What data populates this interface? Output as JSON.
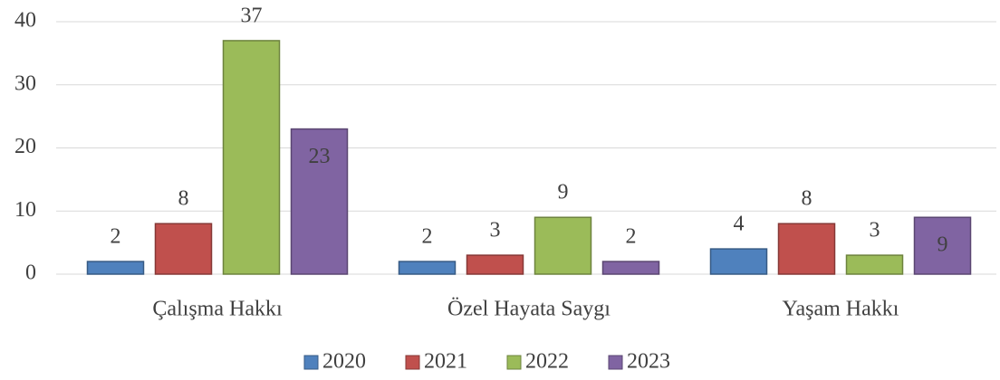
{
  "chart_data": {
    "type": "bar",
    "categories": [
      "Çalışma Hakkı",
      "Özel Hayata Saygı",
      "Yaşam Hakkı"
    ],
    "series": [
      {
        "name": "2020",
        "color": "#4f81bd",
        "values": [
          2,
          2,
          4
        ]
      },
      {
        "name": "2021",
        "color": "#c0504d",
        "values": [
          8,
          3,
          8
        ]
      },
      {
        "name": "2022",
        "color": "#9bbb59",
        "values": [
          37,
          9,
          3
        ]
      },
      {
        "name": "2023",
        "color": "#8064a2",
        "values": [
          23,
          2,
          9
        ]
      }
    ],
    "ylim": [
      0,
      40
    ],
    "yticks": [
      0,
      10,
      20,
      30,
      40
    ],
    "grid": true,
    "legend": "bottom"
  }
}
